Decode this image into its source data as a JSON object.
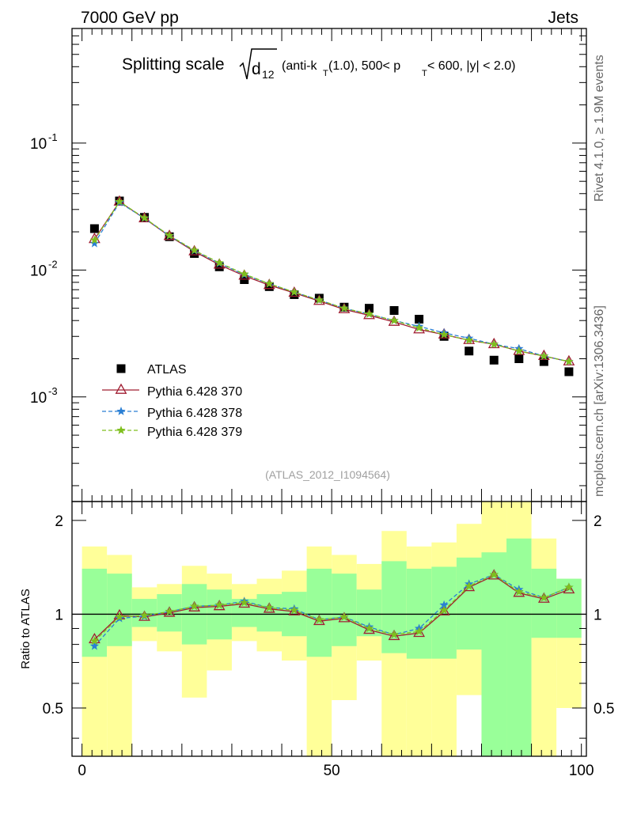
{
  "header": {
    "left": "7000 GeV pp",
    "right": "Jets",
    "side_rivet": "Rivet 4.1.0, ≥ 1.9M events",
    "side_mcplots": "mcplots.cern.ch [arXiv:1306.3436]",
    "analysis_id": "(ATLAS_2012_I1094564)"
  },
  "title": {
    "main": "Splitting scale",
    "d": "d",
    "d_sub": "12",
    "p1": "(anti-k",
    "p1_sub": "T",
    "p2": "(1.0), 500< p",
    "p2_sub": "T",
    "p3": " < 600, |y| < 2.0)"
  },
  "colors": {
    "data": "#000000",
    "py370": "#a01e32",
    "py378": "#2a7fd4",
    "py379": "#7fbf1e",
    "band_outer": "#ffff99",
    "band_inner": "#99ff99"
  },
  "chart_data": [
    {
      "type": "scatter",
      "panel": "main",
      "yscale": "log",
      "xlim": [
        -2,
        101
      ],
      "ylim": [
        0.00015,
        0.8
      ],
      "ytick_labels": [
        "10^-1",
        "10^-2",
        "10^-3"
      ],
      "ytick_values": [
        0.1,
        0.01,
        0.001
      ],
      "x": [
        2.5,
        7.5,
        12.5,
        17.5,
        22.5,
        27.5,
        32.5,
        37.5,
        42.5,
        47.5,
        52.5,
        57.5,
        62.5,
        67.5,
        72.5,
        77.5,
        82.5,
        87.5,
        92.5,
        97.5
      ],
      "series": [
        {
          "name": "ATLAS",
          "key": "atlas",
          "values": [
            0.0212,
            0.035,
            0.026,
            0.0183,
            0.0135,
            0.0106,
            0.0084,
            0.0074,
            0.0064,
            0.006,
            0.0051,
            0.005,
            0.0048,
            0.0041,
            0.003,
            0.0023,
            0.00195,
            0.002,
            0.0019,
            0.00158
          ]
        },
        {
          "name": "Pythia 6.428 370",
          "key": "py370",
          "values": [
            0.0175,
            0.0345,
            0.0255,
            0.0185,
            0.014,
            0.011,
            0.009,
            0.0076,
            0.0066,
            0.0057,
            0.0049,
            0.0044,
            0.0039,
            0.0034,
            0.0031,
            0.0028,
            0.0026,
            0.0023,
            0.0021,
            0.0019
          ]
        },
        {
          "name": "Pythia 6.428 378",
          "key": "py378",
          "values": [
            0.0162,
            0.034,
            0.0256,
            0.0186,
            0.0142,
            0.0113,
            0.0092,
            0.0078,
            0.0067,
            0.0058,
            0.005,
            0.0045,
            0.004,
            0.0036,
            0.0032,
            0.0029,
            0.0026,
            0.0024,
            0.0021,
            0.0019
          ]
        },
        {
          "name": "Pythia 6.428 379",
          "key": "py379",
          "values": [
            0.0172,
            0.0346,
            0.0257,
            0.0187,
            0.0143,
            0.0114,
            0.0093,
            0.0078,
            0.0067,
            0.0058,
            0.005,
            0.0045,
            0.004,
            0.0035,
            0.0031,
            0.0028,
            0.0026,
            0.0023,
            0.0021,
            0.0019
          ]
        }
      ],
      "legend": [
        "ATLAS",
        "Pythia 6.428 370",
        "Pythia 6.428 378",
        "Pythia 6.428 379"
      ],
      "legend_position": "lower-left"
    },
    {
      "type": "line",
      "panel": "ratio",
      "ylabel": "Ratio to ATLAS",
      "xlim": [
        -2,
        101
      ],
      "ylim": [
        0.35,
        2.3
      ],
      "ytick_labels": [
        "2",
        "1",
        "0.5"
      ],
      "ytick_values": [
        2,
        1,
        0.5
      ],
      "xtick_labels": [
        "0",
        "50",
        "100"
      ],
      "xtick_values": [
        0,
        50,
        100
      ],
      "bin_edges": [
        0,
        5,
        10,
        15,
        20,
        25,
        30,
        35,
        40,
        45,
        50,
        55,
        60,
        65,
        70,
        75,
        80,
        85,
        90,
        95,
        100
      ],
      "band_outer_lo": [
        0.0,
        0.0,
        0.82,
        0.76,
        0.54,
        0.66,
        0.82,
        0.76,
        0.71,
        0.0,
        0.53,
        0.71,
        0.0,
        0.0,
        0.0,
        0.55,
        0.0,
        0.0,
        0.0,
        0.5
      ],
      "band_outer_hi": [
        1.65,
        1.55,
        1.22,
        1.25,
        1.43,
        1.35,
        1.25,
        1.3,
        1.38,
        1.65,
        1.55,
        1.45,
        1.85,
        1.65,
        1.7,
        1.95,
        2.3,
        2.3,
        1.75,
        1.3
      ],
      "band_inner_lo": [
        0.73,
        0.79,
        0.91,
        0.88,
        0.8,
        0.83,
        0.91,
        0.88,
        0.85,
        0.73,
        0.79,
        0.85,
        0.75,
        0.72,
        0.72,
        0.77,
        0.0,
        0.0,
        0.84,
        0.84
      ],
      "band_inner_hi": [
        1.4,
        1.35,
        1.12,
        1.16,
        1.25,
        1.2,
        1.12,
        1.16,
        1.18,
        1.4,
        1.35,
        1.2,
        1.48,
        1.4,
        1.42,
        1.52,
        1.58,
        1.75,
        1.4,
        1.3
      ],
      "x": [
        2.5,
        7.5,
        12.5,
        17.5,
        22.5,
        27.5,
        32.5,
        37.5,
        42.5,
        47.5,
        52.5,
        57.5,
        62.5,
        67.5,
        72.5,
        77.5,
        82.5,
        87.5,
        92.5,
        97.5
      ],
      "series": [
        {
          "name": "Pythia 6.428 370",
          "key": "py370",
          "values": [
            0.83,
            0.99,
            0.98,
            1.01,
            1.05,
            1.06,
            1.08,
            1.04,
            1.02,
            0.95,
            0.97,
            0.89,
            0.85,
            0.87,
            1.02,
            1.22,
            1.33,
            1.17,
            1.12,
            1.2
          ]
        },
        {
          "name": "Pythia 6.428 378",
          "key": "py378",
          "values": [
            0.79,
            0.97,
            0.985,
            1.02,
            1.06,
            1.07,
            1.1,
            1.05,
            1.04,
            0.96,
            0.98,
            0.91,
            0.86,
            0.9,
            1.07,
            1.25,
            1.34,
            1.2,
            1.13,
            1.22
          ]
        },
        {
          "name": "Pythia 6.428 379",
          "key": "py379",
          "values": [
            0.82,
            0.98,
            0.99,
            1.02,
            1.06,
            1.07,
            1.09,
            1.05,
            1.03,
            0.96,
            0.98,
            0.9,
            0.86,
            0.88,
            1.03,
            1.23,
            1.34,
            1.18,
            1.13,
            1.22
          ]
        }
      ]
    }
  ]
}
